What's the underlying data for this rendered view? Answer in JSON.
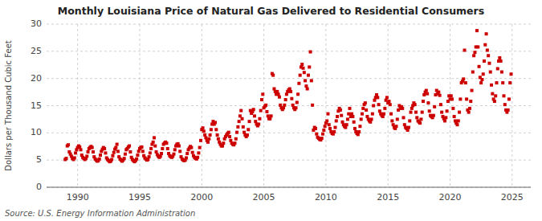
{
  "chart_data": {
    "type": "scatter",
    "title": "Monthly Louisiana Price of Natural Gas Delivered to Residential Consumers",
    "y_label": "Dollars per Thousand Cubic Feet",
    "source": "Source: U.S. Energy Information Administration",
    "color": "#cc0000",
    "marker": "square",
    "grid": true,
    "xlim": [
      1987.5,
      2026.5
    ],
    "ylim": [
      0,
      30
    ],
    "yticks": [
      0,
      5,
      10,
      15,
      20,
      25,
      30
    ],
    "xticks": [
      1990,
      1995,
      2000,
      2005,
      2010,
      2015,
      2020,
      2025
    ],
    "x": [
      1989.0,
      1989.083,
      1989.167,
      1989.25,
      1989.333,
      1989.417,
      1989.5,
      1989.583,
      1989.667,
      1989.75,
      1989.833,
      1989.917,
      1990.0,
      1990.083,
      1990.167,
      1990.25,
      1990.333,
      1990.417,
      1990.5,
      1990.583,
      1990.667,
      1990.75,
      1990.833,
      1990.917,
      1991.0,
      1991.083,
      1991.167,
      1991.25,
      1991.333,
      1991.417,
      1991.5,
      1991.583,
      1991.667,
      1991.75,
      1991.833,
      1991.917,
      1992.0,
      1992.083,
      1992.167,
      1992.25,
      1992.333,
      1992.417,
      1992.5,
      1992.583,
      1992.667,
      1992.75,
      1992.833,
      1992.917,
      1993.0,
      1993.083,
      1993.167,
      1993.25,
      1993.333,
      1993.417,
      1993.5,
      1993.583,
      1993.667,
      1993.75,
      1993.833,
      1993.917,
      1994.0,
      1994.083,
      1994.167,
      1994.25,
      1994.333,
      1994.417,
      1994.5,
      1994.583,
      1994.667,
      1994.75,
      1994.833,
      1994.917,
      1995.0,
      1995.083,
      1995.167,
      1995.25,
      1995.333,
      1995.417,
      1995.5,
      1995.583,
      1995.667,
      1995.75,
      1995.833,
      1995.917,
      1996.0,
      1996.083,
      1996.167,
      1996.25,
      1996.333,
      1996.417,
      1996.5,
      1996.583,
      1996.667,
      1996.75,
      1996.833,
      1996.917,
      1997.0,
      1997.083,
      1997.167,
      1997.25,
      1997.333,
      1997.417,
      1997.5,
      1997.583,
      1997.667,
      1997.75,
      1997.833,
      1997.917,
      1998.0,
      1998.083,
      1998.167,
      1998.25,
      1998.333,
      1998.417,
      1998.5,
      1998.583,
      1998.667,
      1998.75,
      1998.833,
      1998.917,
      1999.0,
      1999.083,
      1999.167,
      1999.25,
      1999.333,
      1999.417,
      1999.5,
      1999.583,
      1999.667,
      1999.75,
      1999.833,
      1999.917,
      2000.0,
      2000.083,
      2000.167,
      2000.25,
      2000.333,
      2000.417,
      2000.5,
      2000.583,
      2000.667,
      2000.75,
      2000.833,
      2000.917,
      2001.0,
      2001.083,
      2001.167,
      2001.25,
      2001.333,
      2001.417,
      2001.5,
      2001.583,
      2001.667,
      2001.75,
      2001.833,
      2001.917,
      2002.0,
      2002.083,
      2002.167,
      2002.25,
      2002.333,
      2002.417,
      2002.5,
      2002.583,
      2002.667,
      2002.75,
      2002.833,
      2002.917,
      2003.0,
      2003.083,
      2003.167,
      2003.25,
      2003.333,
      2003.417,
      2003.5,
      2003.583,
      2003.667,
      2003.75,
      2003.833,
      2003.917,
      2004.0,
      2004.083,
      2004.167,
      2004.25,
      2004.333,
      2004.417,
      2004.5,
      2004.583,
      2004.667,
      2004.75,
      2004.833,
      2004.917,
      2005.0,
      2005.083,
      2005.167,
      2005.25,
      2005.333,
      2005.417,
      2005.5,
      2005.583,
      2005.667,
      2005.75,
      2005.833,
      2005.917,
      2006.0,
      2006.083,
      2006.167,
      2006.25,
      2006.333,
      2006.417,
      2006.5,
      2006.583,
      2006.667,
      2006.75,
      2006.833,
      2006.917,
      2007.0,
      2007.083,
      2007.167,
      2007.25,
      2007.333,
      2007.417,
      2007.5,
      2007.583,
      2007.667,
      2007.75,
      2007.833,
      2007.917,
      2008.0,
      2008.083,
      2008.167,
      2008.25,
      2008.333,
      2008.417,
      2008.5,
      2008.583,
      2008.667,
      2008.75,
      2008.833,
      2008.917,
      2009.0,
      2009.083,
      2009.167,
      2009.25,
      2009.333,
      2009.417,
      2009.5,
      2009.583,
      2009.667,
      2009.75,
      2009.833,
      2009.917,
      2010.0,
      2010.083,
      2010.167,
      2010.25,
      2010.333,
      2010.417,
      2010.5,
      2010.583,
      2010.667,
      2010.75,
      2010.833,
      2010.917,
      2011.0,
      2011.083,
      2011.167,
      2011.25,
      2011.333,
      2011.417,
      2011.5,
      2011.583,
      2011.667,
      2011.75,
      2011.833,
      2011.917,
      2012.0,
      2012.083,
      2012.167,
      2012.25,
      2012.333,
      2012.417,
      2012.5,
      2012.583,
      2012.667,
      2012.75,
      2012.833,
      2012.917,
      2013.0,
      2013.083,
      2013.167,
      2013.25,
      2013.333,
      2013.417,
      2013.5,
      2013.583,
      2013.667,
      2013.75,
      2013.833,
      2013.917,
      2014.0,
      2014.083,
      2014.167,
      2014.25,
      2014.333,
      2014.417,
      2014.5,
      2014.583,
      2014.667,
      2014.75,
      2014.833,
      2014.917,
      2015.0,
      2015.083,
      2015.167,
      2015.25,
      2015.333,
      2015.417,
      2015.5,
      2015.583,
      2015.667,
      2015.75,
      2015.833,
      2015.917,
      2016.0,
      2016.083,
      2016.167,
      2016.25,
      2016.333,
      2016.417,
      2016.5,
      2016.583,
      2016.667,
      2016.75,
      2016.833,
      2016.917,
      2017.0,
      2017.083,
      2017.167,
      2017.25,
      2017.333,
      2017.417,
      2017.5,
      2017.583,
      2017.667,
      2017.75,
      2017.833,
      2017.917,
      2018.0,
      2018.083,
      2018.167,
      2018.25,
      2018.333,
      2018.417,
      2018.5,
      2018.583,
      2018.667,
      2018.75,
      2018.833,
      2018.917,
      2019.0,
      2019.083,
      2019.167,
      2019.25,
      2019.333,
      2019.417,
      2019.5,
      2019.583,
      2019.667,
      2019.75,
      2019.833,
      2019.917,
      2020.0,
      2020.083,
      2020.167,
      2020.25,
      2020.333,
      2020.417,
      2020.5,
      2020.583,
      2020.667,
      2020.75,
      2020.833,
      2020.917,
      2021.0,
      2021.083,
      2021.167,
      2021.25,
      2021.333,
      2021.417,
      2021.5,
      2021.583,
      2021.667,
      2021.75,
      2021.833,
      2021.917,
      2022.0,
      2022.083,
      2022.167,
      2022.25,
      2022.333,
      2022.417,
      2022.5,
      2022.583,
      2022.667,
      2022.75,
      2022.833,
      2022.917,
      2023.0,
      2023.083,
      2023.167,
      2023.25,
      2023.333,
      2023.417,
      2023.5,
      2023.583,
      2023.667,
      2023.75,
      2023.833,
      2023.917,
      2024.0,
      2024.083,
      2024.167,
      2024.25,
      2024.333,
      2024.417,
      2024.5,
      2024.583,
      2024.667,
      2024.75,
      2024.833,
      2024.917
    ],
    "values": [
      5.1,
      5.3,
      7.6,
      7.8,
      6.5,
      6.1,
      5.7,
      5.3,
      5.1,
      5.4,
      6.3,
      6.9,
      7.3,
      7.6,
      7.4,
      6.9,
      5.9,
      5.5,
      5.3,
      5.1,
      5.3,
      5.7,
      6.5,
      7.1,
      7.3,
      7.5,
      7.3,
      6.5,
      5.6,
      5.2,
      5.0,
      4.8,
      4.9,
      5.2,
      5.9,
      6.6,
      7.0,
      7.3,
      7.1,
      6.3,
      5.4,
      5.1,
      4.9,
      4.7,
      4.8,
      5.1,
      5.8,
      6.4,
      7.0,
      7.3,
      7.9,
      6.6,
      5.6,
      5.2,
      5.0,
      4.8,
      5.0,
      5.3,
      6.1,
      6.9,
      7.1,
      7.4,
      7.6,
      6.5,
      5.5,
      5.1,
      4.9,
      4.7,
      4.9,
      5.2,
      5.9,
      6.6,
      7.1,
      7.3,
      7.4,
      6.6,
      5.8,
      5.4,
      5.2,
      5.0,
      5.1,
      5.6,
      6.3,
      7.1,
      7.9,
      8.3,
      9.1,
      7.6,
      6.5,
      6.0,
      5.7,
      5.5,
      5.7,
      6.2,
      7.1,
      7.9,
      8.1,
      8.3,
      8.1,
      7.1,
      6.2,
      5.8,
      5.6,
      5.5,
      5.7,
      6.1,
      6.9,
      7.6,
      7.9,
      8.0,
      7.6,
      6.6,
      5.6,
      5.2,
      5.0,
      4.9,
      5.0,
      5.4,
      6.2,
      6.9,
      7.2,
      7.5,
      7.3,
      6.4,
      5.8,
      5.5,
      5.3,
      5.2,
      5.5,
      6.3,
      7.3,
      8.6,
      10.6,
      10.9,
      10.3,
      9.6,
      9.1,
      8.6,
      8.3,
      8.9,
      9.6,
      10.6,
      11.6,
      12.1,
      11.6,
      11.9,
      10.6,
      9.6,
      8.9,
      8.3,
      7.9,
      7.6,
      7.6,
      8.1,
      8.9,
      9.3,
      9.6,
      9.9,
      10.1,
      9.3,
      8.6,
      8.1,
      7.9,
      7.8,
      8.1,
      8.9,
      10.1,
      11.1,
      12.1,
      13.1,
      14.1,
      12.6,
      11.1,
      10.1,
      9.6,
      9.3,
      9.6,
      10.6,
      12.1,
      14.1,
      13.6,
      13.9,
      14.3,
      13.1,
      12.1,
      11.6,
      11.3,
      11.6,
      12.6,
      14.1,
      16.1,
      17.1,
      14.6,
      14.9,
      15.1,
      13.9,
      13.1,
      12.6,
      12.6,
      13.1,
      20.9,
      20.6,
      18.1,
      17.6,
      17.1,
      17.6,
      17.1,
      16.6,
      15.1,
      14.6,
      14.3,
      14.6,
      15.1,
      16.1,
      17.1,
      17.6,
      17.9,
      18.1,
      17.6,
      16.3,
      15.1,
      14.6,
      14.3,
      14.6,
      15.6,
      17.1,
      19.1,
      20.6,
      22.1,
      22.6,
      21.9,
      21.1,
      19.6,
      18.6,
      18.1,
      20.6,
      22.1,
      24.9,
      19.6,
      15.1,
      10.5,
      11.0,
      10.8,
      9.8,
      9.2,
      9.0,
      8.8,
      8.7,
      9.0,
      9.8,
      10.5,
      11.2,
      11.8,
      12.2,
      13.5,
      11.5,
      10.8,
      10.2,
      9.9,
      9.8,
      10.2,
      11.0,
      12.2,
      13.0,
      14.0,
      14.5,
      14.2,
      13.2,
      12.0,
      11.5,
      11.2,
      11.0,
      11.5,
      12.5,
      13.5,
      14.5,
      13.0,
      13.5,
      13.0,
      12.0,
      10.8,
      10.2,
      9.9,
      9.7,
      10.2,
      11.2,
      12.5,
      13.5,
      14.5,
      15.2,
      15.5,
      14.2,
      13.0,
      12.5,
      12.2,
      12.0,
      12.5,
      13.5,
      15.0,
      16.0,
      16.5,
      17.0,
      16.5,
      15.2,
      14.0,
      13.5,
      13.2,
      13.0,
      13.5,
      14.5,
      16.0,
      16.5,
      15.5,
      15.8,
      15.2,
      13.5,
      12.2,
      11.5,
      11.0,
      10.8,
      11.2,
      12.5,
      14.2,
      15.0,
      14.5,
      14.8,
      14.5,
      12.8,
      11.5,
      11.0,
      10.8,
      10.5,
      11.0,
      12.2,
      13.8,
      14.5,
      15.0,
      15.5,
      15.2,
      13.8,
      12.8,
      12.2,
      12.0,
      11.8,
      12.5,
      13.8,
      15.8,
      17.0,
      17.5,
      17.8,
      17.2,
      15.5,
      14.0,
      13.2,
      13.0,
      12.8,
      13.2,
      14.8,
      17.0,
      17.8,
      17.2,
      17.5,
      16.9,
      15.2,
      13.8,
      13.0,
      12.6,
      12.2,
      12.8,
      14.0,
      15.8,
      16.8,
      16.2,
      16.8,
      16.2,
      14.5,
      13.0,
      12.2,
      11.8,
      11.5,
      12.2,
      13.8,
      16.2,
      19.2,
      19.5,
      19.9,
      25.2,
      19.2,
      16.2,
      14.2,
      13.8,
      14.5,
      15.8,
      17.8,
      21.2,
      24.2,
      24.8,
      25.8,
      28.8,
      25.8,
      22.2,
      20.2,
      19.2,
      19.8,
      20.8,
      23.2,
      26.2,
      28.2,
      25.2,
      24.2,
      22.8,
      21.2,
      18.8,
      17.2,
      16.2,
      15.8,
      16.8,
      19.2,
      21.8,
      23.2,
      23.8,
      23.2,
      21.2,
      19.2,
      16.8,
      15.2,
      14.2,
      13.8,
      14.2,
      16.2,
      19.2,
      20.8
    ]
  }
}
